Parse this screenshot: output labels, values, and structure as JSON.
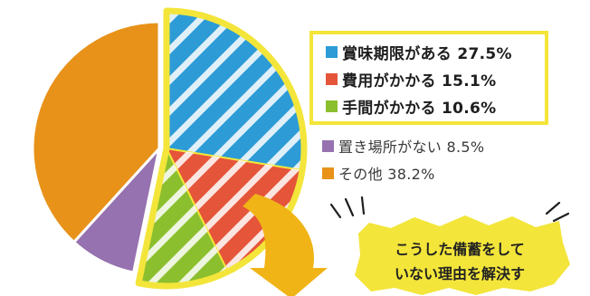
{
  "chart_data": {
    "type": "pie",
    "slices": [
      {
        "label": "賞味期限がある",
        "value": 27.5,
        "display": "賞味期限がある 27.5%",
        "color": "#2d9bd6",
        "highlighted": true
      },
      {
        "label": "費用がかかる",
        "value": 15.1,
        "display": "費用がかかる 15.1%",
        "color": "#e5553a",
        "highlighted": true
      },
      {
        "label": "手間がかかる",
        "value": 10.6,
        "display": "手間がかかる 10.6%",
        "color": "#8cbf2e",
        "highlighted": true
      },
      {
        "label": "置き場所がない",
        "value": 8.5,
        "display": "置き場所がない 8.5%",
        "color": "#9672b0",
        "highlighted": false
      },
      {
        "label": "その他",
        "value": 38.2,
        "display": "その他 38.2%",
        "color": "#e8921a",
        "highlighted": false
      }
    ],
    "highlight_color": "#f3e53a",
    "legend_placement": "right"
  },
  "callout": {
    "lines": [
      "こうした備蓄をして",
      "いない理由を解決す"
    ],
    "color": "#f3e53a",
    "arrow_color": "#f0b416"
  }
}
